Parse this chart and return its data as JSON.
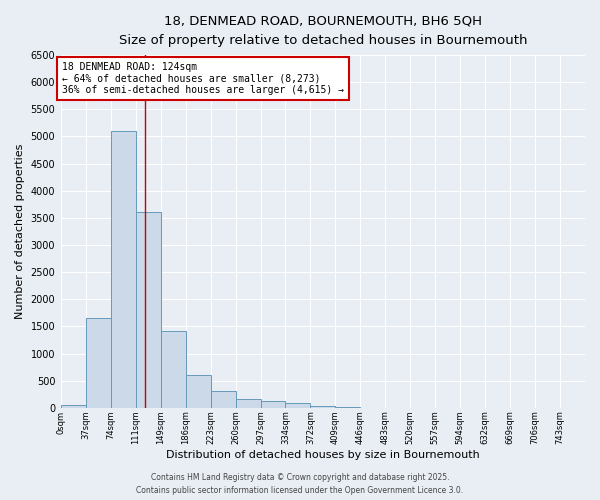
{
  "title_line1": "18, DENMEAD ROAD, BOURNEMOUTH, BH6 5QH",
  "title_line2": "Size of property relative to detached houses in Bournemouth",
  "xlabel": "Distribution of detached houses by size in Bournemouth",
  "ylabel": "Number of detached properties",
  "bin_labels": [
    "0sqm",
    "37sqm",
    "74sqm",
    "111sqm",
    "149sqm",
    "186sqm",
    "223sqm",
    "260sqm",
    "297sqm",
    "334sqm",
    "372sqm",
    "409sqm",
    "446sqm",
    "483sqm",
    "520sqm",
    "557sqm",
    "594sqm",
    "632sqm",
    "669sqm",
    "706sqm",
    "743sqm"
  ],
  "bar_values": [
    60,
    1650,
    5100,
    3600,
    1420,
    610,
    310,
    160,
    120,
    80,
    25,
    15,
    5,
    0,
    0,
    0,
    0,
    0,
    0,
    0,
    0
  ],
  "bar_color": "#ccd9e8",
  "bar_edge_color": "#6699bb",
  "vline_x": 124,
  "vline_color": "#cc0000",
  "annotation_title": "18 DENMEAD ROAD: 124sqm",
  "annotation_line2": "← 64% of detached houses are smaller (8,273)",
  "annotation_line3": "36% of semi-detached houses are larger (4,615) →",
  "annotation_box_color": "#cc0000",
  "ylim": [
    0,
    6500
  ],
  "bin_width": 37,
  "footer_line1": "Contains HM Land Registry data © Crown copyright and database right 2025.",
  "footer_line2": "Contains public sector information licensed under the Open Government Licence 3.0.",
  "background_color": "#e8eef4",
  "plot_bg_color": "#e8eef4",
  "grid_color": "#ffffff",
  "yticks": [
    0,
    500,
    1000,
    1500,
    2000,
    2500,
    3000,
    3500,
    4000,
    4500,
    5000,
    5500,
    6000,
    6500
  ]
}
